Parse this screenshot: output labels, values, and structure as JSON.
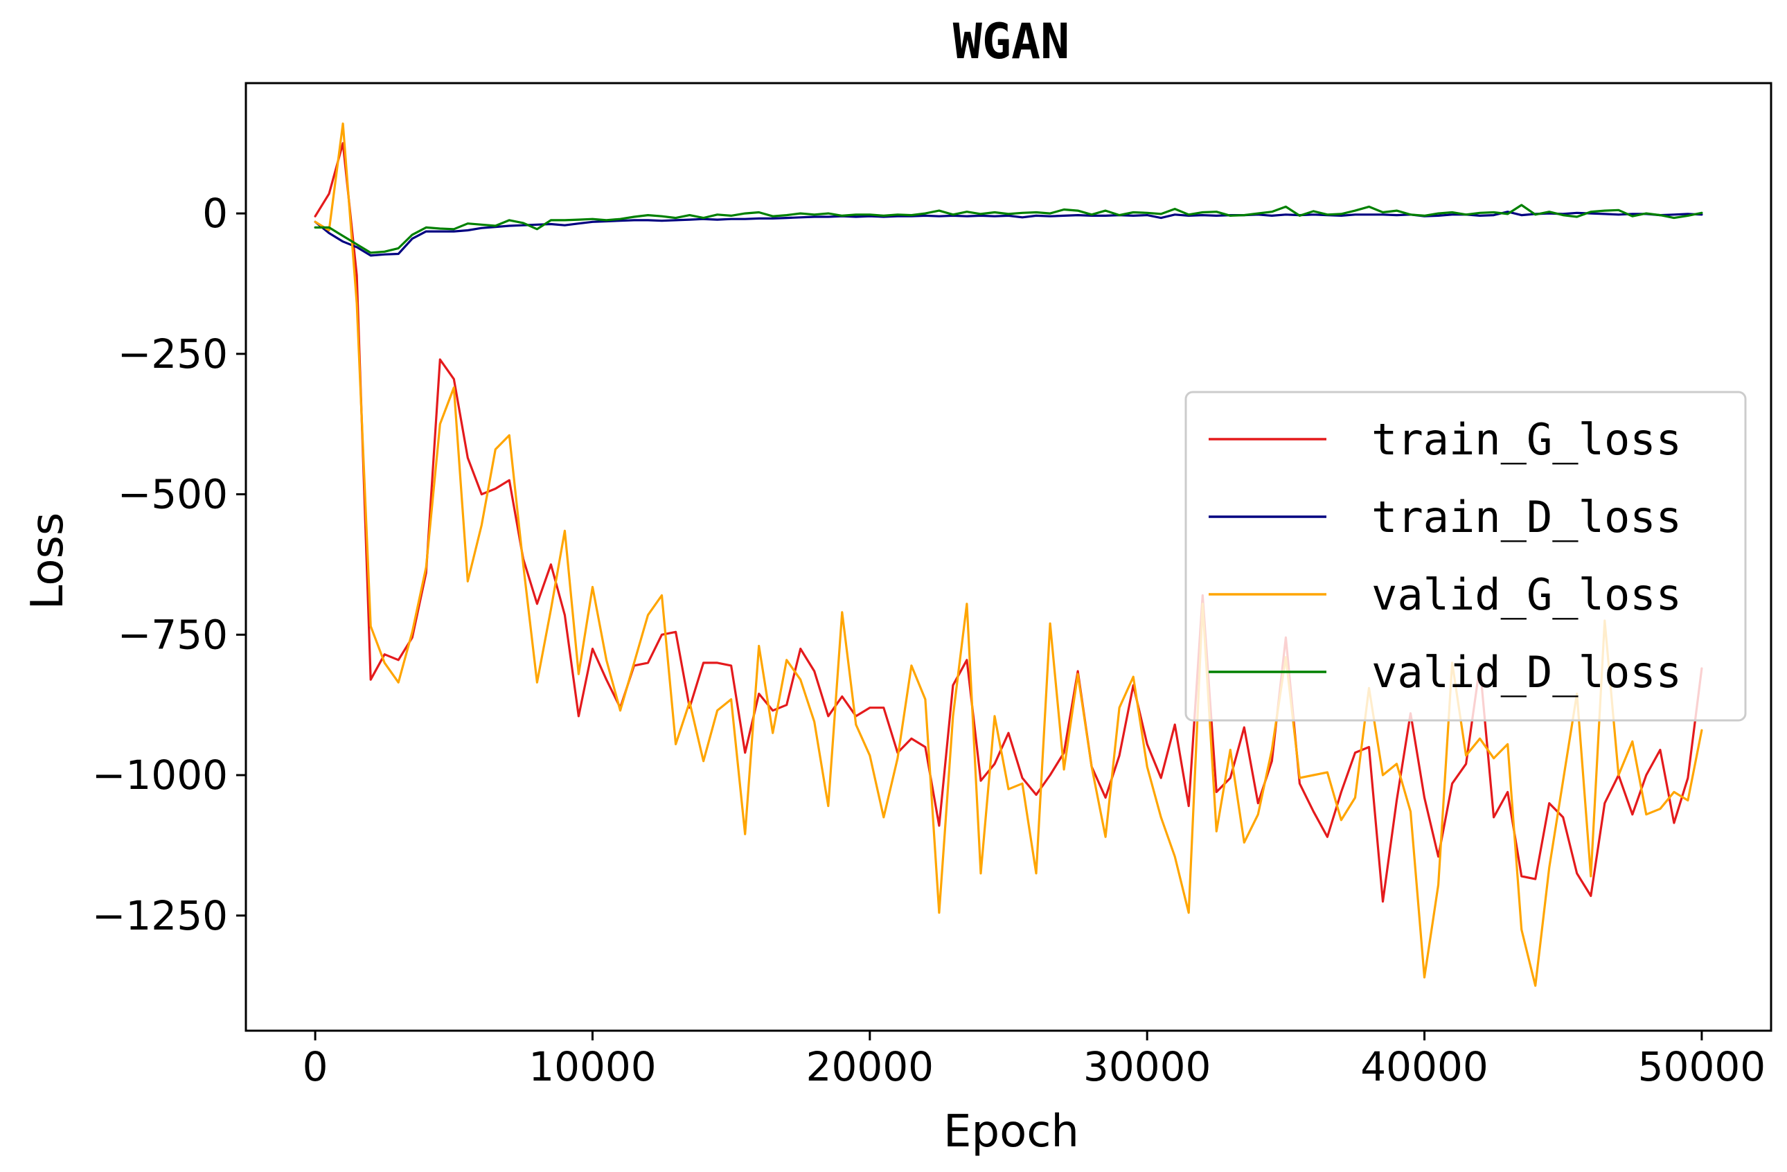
{
  "chart_data": {
    "type": "line",
    "title": "WGAN",
    "xlabel": "Epoch",
    "ylabel": "Loss",
    "xlim": [
      -2500,
      52500
    ],
    "ylim": [
      -1455,
      232
    ],
    "xticks": [
      0,
      10000,
      20000,
      30000,
      40000,
      50000
    ],
    "yticks": [
      0,
      -250,
      -500,
      -750,
      -1000,
      -1250
    ],
    "xtick_labels": [
      "0",
      "10000",
      "20000",
      "30000",
      "40000",
      "50000"
    ],
    "ytick_labels": [
      "0",
      "−250",
      "−500",
      "−750",
      "−1000",
      "−1250"
    ],
    "grid": false,
    "legend_position": "center-right",
    "x": [
      0,
      500,
      1000,
      1500,
      2000,
      2500,
      3000,
      3500,
      4000,
      4500,
      5000,
      5500,
      6000,
      6500,
      7000,
      7500,
      8000,
      8500,
      9000,
      9500,
      10000,
      10500,
      11000,
      11500,
      12000,
      12500,
      13000,
      13500,
      14000,
      14500,
      15000,
      15500,
      16000,
      16500,
      17000,
      17500,
      18000,
      18500,
      19000,
      19500,
      20000,
      20500,
      21000,
      21500,
      22000,
      22500,
      23000,
      23500,
      24000,
      24500,
      25000,
      25500,
      26000,
      26500,
      27000,
      27500,
      28000,
      28500,
      29000,
      29500,
      30000,
      30500,
      31000,
      31500,
      32000,
      32500,
      33000,
      33500,
      34000,
      34500,
      35000,
      35500,
      36000,
      36500,
      37000,
      37500,
      38000,
      38500,
      39000,
      39500,
      40000,
      40500,
      41000,
      41500,
      42000,
      42500,
      43000,
      43500,
      44000,
      44500,
      45000,
      45500,
      46000,
      46500,
      47000,
      47500,
      48000,
      48500,
      49000,
      49500,
      50000
    ],
    "series": [
      {
        "name": "train_G_loss",
        "color": "#e41a1c",
        "values": [
          -5,
          35,
          125,
          -110,
          -830,
          -785,
          -795,
          -755,
          -640,
          -260,
          -295,
          -435,
          -500,
          -490,
          -475,
          -615,
          -695,
          -625,
          -715,
          -895,
          -775,
          -830,
          -880,
          -805,
          -800,
          -750,
          -745,
          -880,
          -800,
          -800,
          -805,
          -960,
          -855,
          -885,
          -875,
          -775,
          -815,
          -895,
          -860,
          -895,
          -880,
          -880,
          -960,
          -935,
          -950,
          -1090,
          -840,
          -795,
          -1010,
          -980,
          -925,
          -1005,
          -1035,
          -1000,
          -960,
          -815,
          -985,
          -1040,
          -965,
          -840,
          -945,
          -1005,
          -910,
          -1055,
          -680,
          -1030,
          -1005,
          -915,
          -1050,
          -975,
          -755,
          -1015,
          -1065,
          -1110,
          -1030,
          -960,
          -950,
          -1225,
          -1045,
          -890,
          -1040,
          -1145,
          -1015,
          -980,
          -805,
          -1075,
          -1030,
          -1180,
          -1185,
          -1050,
          -1075,
          -1175,
          -1215,
          -1050,
          -1000,
          -1070,
          -1000,
          -955,
          -1085,
          -1005,
          -810
        ]
      },
      {
        "name": "train_D_loss",
        "color": "#000080",
        "values": [
          -15,
          -35,
          -50,
          -60,
          -75,
          -73,
          -72,
          -45,
          -32,
          -32,
          -32,
          -30,
          -26,
          -24,
          -22,
          -21,
          -20,
          -19,
          -21,
          -18,
          -15,
          -14,
          -13,
          -12,
          -12,
          -13,
          -12,
          -11,
          -10,
          -11,
          -10,
          -10,
          -9,
          -9,
          -8,
          -7,
          -6,
          -6,
          -5,
          -6,
          -5,
          -6,
          -5,
          -5,
          -4,
          -5,
          -4,
          -5,
          -4,
          -5,
          -4,
          -7,
          -4,
          -5,
          -4,
          -3,
          -4,
          -4,
          -3,
          -4,
          -3,
          -8,
          -2,
          -4,
          -3,
          -4,
          -3,
          -3,
          -2,
          -4,
          -2,
          -3,
          -2,
          -3,
          -4,
          -2,
          -2,
          -2,
          -3,
          -2,
          -5,
          -4,
          -2,
          -2,
          -4,
          -3,
          3,
          -3,
          -1,
          0,
          -1,
          1,
          0,
          -1,
          -2,
          -1,
          -1,
          -3,
          -2,
          -1,
          -2
        ]
      },
      {
        "name": "valid_G_loss",
        "color": "#ffa500",
        "values": [
          -15,
          -30,
          160,
          -160,
          -735,
          -800,
          -835,
          -745,
          -630,
          -375,
          -310,
          -655,
          -555,
          -420,
          -395,
          -625,
          -835,
          -705,
          -565,
          -820,
          -665,
          -795,
          -885,
          -800,
          -715,
          -680,
          -945,
          -870,
          -975,
          -885,
          -865,
          -1105,
          -770,
          -925,
          -795,
          -830,
          -905,
          -1055,
          -710,
          -910,
          -965,
          -1075,
          -970,
          -805,
          -865,
          -1245,
          -895,
          -695,
          -1175,
          -895,
          -1025,
          -1015,
          -1175,
          -730,
          -990,
          -820,
          -985,
          -1110,
          -880,
          -825,
          -985,
          -1075,
          -1145,
          -1245,
          -695,
          -1100,
          -955,
          -1120,
          -1070,
          -955,
          -790,
          -1005,
          -1000,
          -995,
          -1080,
          -1040,
          -845,
          -1000,
          -980,
          -1065,
          -1360,
          -1195,
          -800,
          -965,
          -935,
          -970,
          -945,
          -1275,
          -1375,
          -1165,
          -1010,
          -855,
          -1180,
          -725,
          -1000,
          -940,
          -1070,
          -1060,
          -1030,
          -1045,
          -920
        ]
      },
      {
        "name": "valid_D_loss",
        "color": "#008000",
        "values": [
          -25,
          -25,
          -40,
          -55,
          -70,
          -68,
          -62,
          -38,
          -25,
          -27,
          -28,
          -18,
          -20,
          -22,
          -12,
          -17,
          -28,
          -12,
          -12,
          -11,
          -10,
          -12,
          -10,
          -6,
          -3,
          -5,
          -8,
          -3,
          -8,
          -2,
          -4,
          0,
          2,
          -5,
          -3,
          0,
          -2,
          0,
          -4,
          -2,
          -2,
          -4,
          -2,
          -3,
          0,
          5,
          -2,
          3,
          -1,
          2,
          -1,
          1,
          2,
          0,
          7,
          5,
          -2,
          5,
          -3,
          2,
          1,
          -1,
          8,
          -2,
          2,
          3,
          -4,
          -3,
          0,
          3,
          12,
          -4,
          4,
          -2,
          -1,
          5,
          12,
          2,
          5,
          -2,
          -4,
          0,
          2,
          -2,
          1,
          2,
          -1,
          15,
          -2,
          3,
          -3,
          -6,
          3,
          5,
          6,
          -5,
          0,
          -3,
          -8,
          -4,
          1
        ]
      }
    ]
  }
}
